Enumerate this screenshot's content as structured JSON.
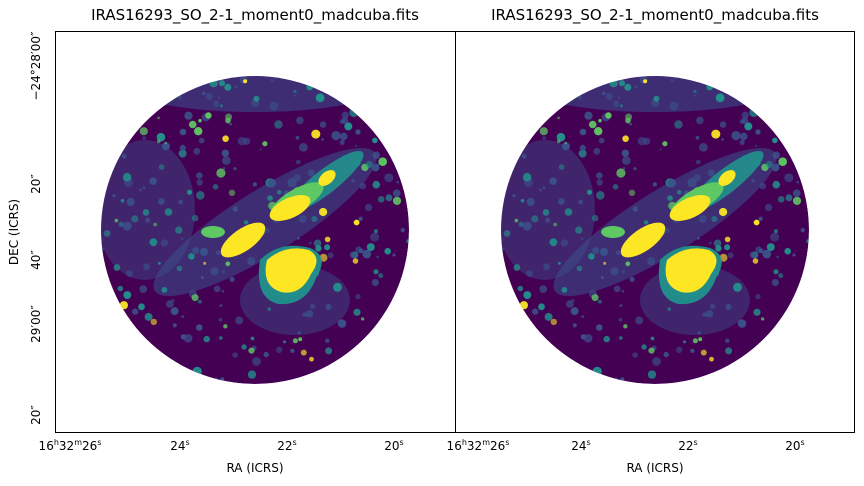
{
  "figure": {
    "colors": {
      "background_map": "#440154",
      "low": "#3b528b",
      "mid": "#21918c",
      "high": "#5ec962",
      "peak": "#fde725",
      "frame": "#000000"
    }
  },
  "chart_data": [
    {
      "type": "heatmap",
      "title": "IRAS16293_SO_2-1_moment0_madcuba.fits",
      "xlabel": "RA (ICRS)",
      "ylabel": "DEC (ICRS)",
      "x_ticks": [
        "16h32m26s",
        "24s",
        "22s",
        "20s"
      ],
      "y_ticks": [
        "−24°28′00″",
        "20″",
        "40″",
        "29′00″",
        "20″"
      ],
      "x_tick_parts": [
        {
          "h": "16",
          "m": "32",
          "s": "26"
        },
        {
          "s": "24"
        },
        {
          "s": "22"
        },
        {
          "s": "20"
        }
      ],
      "colormap": "viridis",
      "show_y_tick_labels": true,
      "show_axis_titles": true
    },
    {
      "type": "heatmap",
      "title": "IRAS16293_SO_2-1_moment0_madcuba.fits",
      "xlabel": "RA (ICRS)",
      "ylabel": "",
      "x_ticks": [
        "16h32m26s",
        "24s",
        "22s",
        "20s"
      ],
      "y_ticks": [],
      "x_tick_parts": [
        {
          "h": "16",
          "m": "32",
          "s": "26"
        },
        {
          "s": "24"
        },
        {
          "s": "22"
        },
        {
          "s": "20"
        }
      ],
      "colormap": "viridis",
      "show_y_tick_labels": false,
      "show_axis_titles": false
    }
  ]
}
